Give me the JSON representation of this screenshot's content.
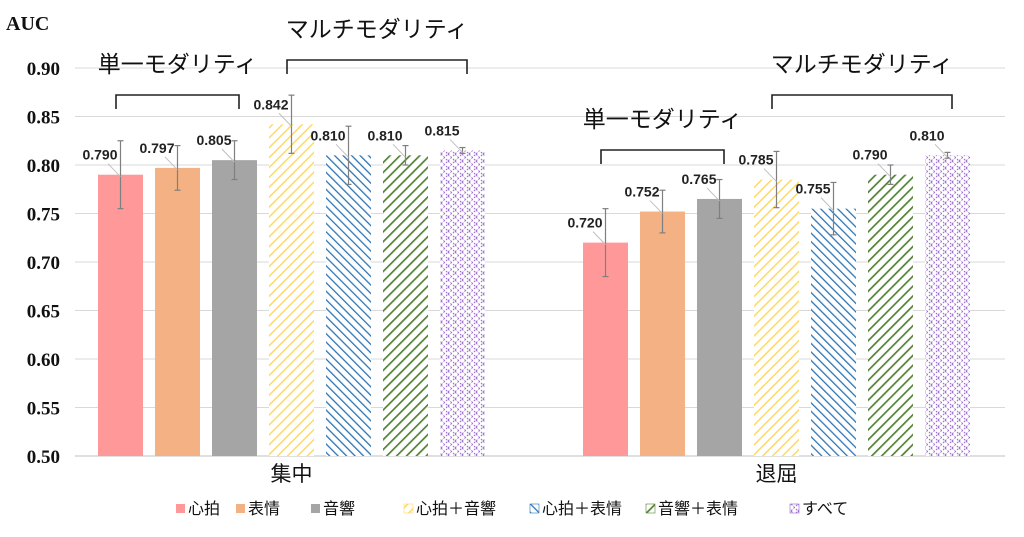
{
  "chart_data": {
    "type": "bar",
    "ylabel": "AUC",
    "ylim": [
      0.5,
      0.9
    ],
    "yticks": [
      "0.90",
      "0.85",
      "0.80",
      "0.75",
      "0.70",
      "0.65",
      "0.60",
      "0.55",
      "0.50"
    ],
    "grid": true,
    "legend_position": "bottom",
    "categories": [
      "集中",
      "退屈"
    ],
    "series": [
      {
        "name": "心拍",
        "values": [
          0.79,
          0.72
        ],
        "errors": [
          0.035,
          0.035
        ],
        "labels": [
          "0.790",
          "0.720"
        ],
        "color": "#ff9999",
        "pattern": "solid"
      },
      {
        "name": "表情",
        "values": [
          0.797,
          0.752
        ],
        "errors": [
          0.023,
          0.022
        ],
        "labels": [
          "0.797",
          "0.752"
        ],
        "color": "#f4b183",
        "pattern": "solid"
      },
      {
        "name": "音響",
        "values": [
          0.805,
          0.765
        ],
        "errors": [
          0.02,
          0.02
        ],
        "labels": [
          "0.805",
          "0.765"
        ],
        "color": "#a5a5a5",
        "pattern": "solid"
      },
      {
        "name": "心拍＋音響",
        "values": [
          0.842,
          0.785
        ],
        "errors": [
          0.03,
          0.029
        ],
        "labels": [
          "0.842",
          "0.785"
        ],
        "color": "#ffd966",
        "pattern": "hatch-right"
      },
      {
        "name": "心拍＋表情",
        "values": [
          0.81,
          0.755
        ],
        "errors": [
          0.03,
          0.027
        ],
        "labels": [
          "0.810",
          "0.755"
        ],
        "color": "#2e75b6",
        "pattern": "hatch-left"
      },
      {
        "name": "音響＋表情",
        "values": [
          0.81,
          0.79
        ],
        "errors": [
          0.01,
          0.01
        ],
        "labels": [
          "0.810",
          "0.790"
        ],
        "color": "#548235",
        "pattern": "hatch-right-wide"
      },
      {
        "name": "すべて",
        "values": [
          0.815,
          0.81
        ],
        "errors": [
          0.003,
          0.003
        ],
        "labels": [
          "0.815",
          "0.810"
        ],
        "color": "#9966cc",
        "pattern": "crosshatch"
      }
    ],
    "annotations": [
      {
        "text": "単一モダリティ",
        "group": 0,
        "series_from": 0,
        "series_to": 2
      },
      {
        "text": "マルチモダリティ",
        "group": 0,
        "series_from": 3,
        "series_to": 6
      },
      {
        "text": "単一モダリティ",
        "group": 1,
        "series_from": 0,
        "series_to": 2
      },
      {
        "text": "マルチモダリティ",
        "group": 1,
        "series_from": 3,
        "series_to": 6
      }
    ]
  }
}
